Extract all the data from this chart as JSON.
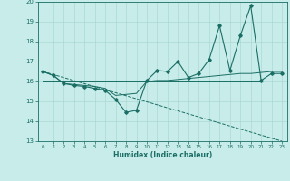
{
  "xlabel": "Humidex (Indice chaleur)",
  "xlim": [
    -0.5,
    23.5
  ],
  "ylim": [
    13,
    20
  ],
  "yticks": [
    13,
    14,
    15,
    16,
    17,
    18,
    19,
    20
  ],
  "xticks": [
    0,
    1,
    2,
    3,
    4,
    5,
    6,
    7,
    8,
    9,
    10,
    11,
    12,
    13,
    14,
    15,
    16,
    17,
    18,
    19,
    20,
    21,
    22,
    23
  ],
  "bg_color": "#c8ece9",
  "line_color": "#1a6e65",
  "grid_color": "#aad8d3",
  "line1_x": [
    0,
    1,
    2,
    3,
    4,
    5,
    6,
    7,
    8,
    9,
    10,
    11,
    12,
    13,
    14,
    15,
    16,
    17,
    18,
    19,
    20,
    21,
    22,
    23
  ],
  "line1_y": [
    16.5,
    16.3,
    15.9,
    15.8,
    15.75,
    15.65,
    15.55,
    15.1,
    14.45,
    14.55,
    16.05,
    16.55,
    16.5,
    17.0,
    16.2,
    16.4,
    17.1,
    18.8,
    16.55,
    18.3,
    19.8,
    16.05,
    16.4,
    16.4
  ],
  "line2_x": [
    0,
    1,
    2,
    3,
    4,
    5,
    6,
    7,
    8,
    9,
    10,
    11,
    12,
    13,
    14,
    15,
    16,
    17,
    18,
    19,
    20,
    21,
    22,
    23
  ],
  "line2_y": [
    16.5,
    16.3,
    15.9,
    15.85,
    15.8,
    15.75,
    15.65,
    15.3,
    15.35,
    15.4,
    16.0,
    16.05,
    16.05,
    16.1,
    16.15,
    16.2,
    16.25,
    16.3,
    16.35,
    16.4,
    16.4,
    16.45,
    16.5,
    16.5
  ],
  "line3_x": [
    0,
    23
  ],
  "line3_y": [
    16.5,
    13.0
  ],
  "line4_x": [
    0,
    21
  ],
  "line4_y": [
    16.0,
    16.0
  ]
}
